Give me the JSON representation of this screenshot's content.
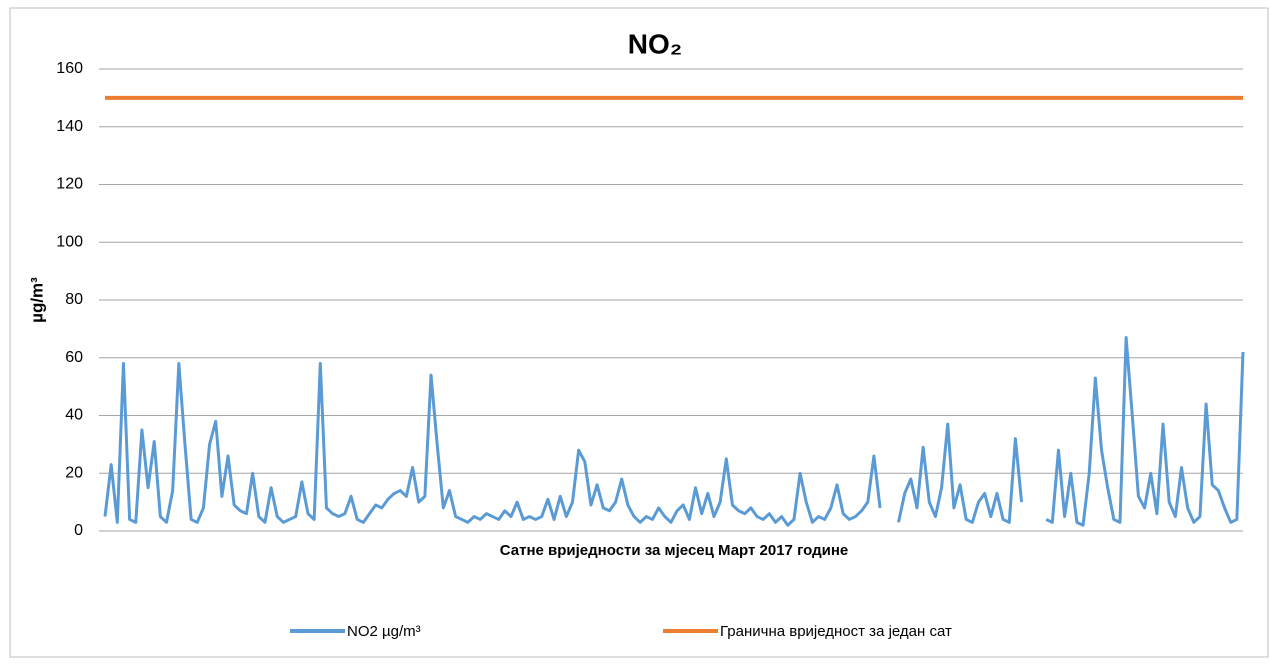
{
  "chart_data": {
    "type": "line",
    "title": "NO₂",
    "x_label": "Сатне вриједности  за мјесец Март  2017 године",
    "y_label": "µg/m³",
    "ylim": [
      0,
      160
    ],
    "yticks": [
      0,
      20,
      40,
      60,
      80,
      100,
      120,
      140,
      160
    ],
    "grid": true,
    "legend": "bottom",
    "series": [
      {
        "name": "NO2 µg/m³",
        "color": "#5b9bd5",
        "values": [
          5,
          23,
          3,
          58,
          4,
          3,
          35,
          15,
          31,
          5,
          3,
          14,
          58,
          30,
          4,
          3,
          8,
          30,
          38,
          12,
          26,
          9,
          7,
          6,
          20,
          5,
          3,
          15,
          5,
          3,
          4,
          5,
          17,
          6,
          4,
          58,
          8,
          6,
          5,
          6,
          12,
          4,
          3,
          6,
          9,
          8,
          11,
          13,
          14,
          12,
          22,
          10,
          12,
          54,
          30,
          8,
          14,
          5,
          4,
          3,
          5,
          4,
          6,
          5,
          4,
          7,
          5,
          10,
          4,
          5,
          4,
          5,
          11,
          4,
          12,
          5,
          10,
          28,
          24,
          9,
          16,
          8,
          7,
          10,
          18,
          9,
          5,
          3,
          5,
          4,
          8,
          5,
          3,
          7,
          9,
          4,
          15,
          6,
          13,
          5,
          10,
          25,
          9,
          7,
          6,
          8,
          5,
          4,
          6,
          3,
          5,
          2,
          4,
          20,
          10,
          3,
          5,
          4,
          8,
          16,
          6,
          4,
          5,
          7,
          10,
          26,
          8,
          null,
          null,
          3,
          13,
          18,
          8,
          29,
          10,
          5,
          15,
          37,
          8,
          16,
          4,
          3,
          10,
          13,
          5,
          13,
          4,
          3,
          32,
          10,
          null,
          8,
          null,
          4,
          3,
          28,
          5,
          20,
          3,
          2,
          20,
          53,
          28,
          15,
          4,
          3,
          67,
          40,
          12,
          8,
          20,
          6,
          37,
          10,
          5,
          22,
          8,
          3,
          5,
          44,
          16,
          14,
          8,
          3,
          4,
          62
        ]
      },
      {
        "name": "Гранична вриједност за један сат",
        "color": "#ed7d31",
        "values": [
          150,
          150,
          150,
          150,
          150,
          150,
          150,
          150,
          150,
          150,
          150,
          150,
          150,
          150,
          150,
          150,
          150,
          150,
          150,
          150,
          150,
          150,
          150,
          150,
          150,
          150,
          150,
          150,
          150,
          150,
          150,
          150,
          150,
          150,
          150,
          150,
          150,
          150,
          150,
          150,
          150,
          150,
          150,
          150,
          150,
          150,
          150,
          150,
          150,
          150,
          150,
          150,
          150,
          150,
          150,
          150,
          150,
          150,
          150,
          150,
          150,
          150,
          150,
          150,
          150,
          150,
          150,
          150,
          150,
          150,
          150,
          150,
          150,
          150,
          150,
          150,
          150,
          150,
          150,
          150,
          150,
          150,
          150,
          150,
          150,
          150,
          150,
          150,
          150,
          150,
          150,
          150,
          150,
          150,
          150,
          150,
          150,
          150,
          150,
          150,
          150,
          150,
          150,
          150,
          150,
          150,
          150,
          150,
          150,
          150,
          150,
          150,
          150,
          150,
          150,
          150,
          150,
          150,
          150,
          150,
          150,
          150,
          150,
          150,
          150,
          150,
          150,
          150,
          150,
          150,
          150,
          150,
          150,
          150,
          150,
          150,
          150,
          150,
          150,
          150,
          150,
          150,
          150,
          150,
          150,
          150,
          150,
          150,
          150,
          150,
          150,
          150,
          150,
          150,
          150,
          150,
          150,
          150,
          150,
          150,
          150,
          150,
          150,
          150,
          150,
          150,
          150,
          150,
          150,
          150,
          150,
          150,
          150,
          150,
          150,
          150,
          150,
          150,
          150,
          150,
          150,
          150,
          150,
          150,
          150,
          150
        ]
      }
    ]
  }
}
